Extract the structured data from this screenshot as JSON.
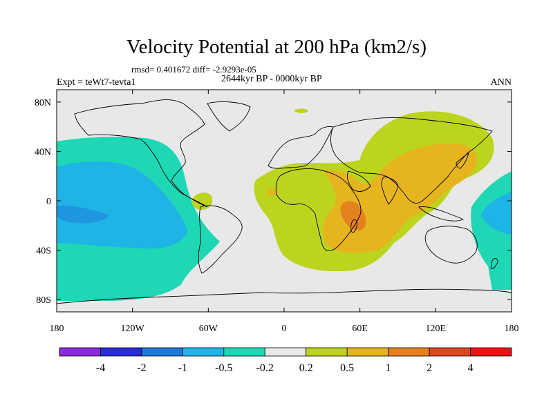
{
  "figure": {
    "title": "Velocity Potential at 200 hPa (km2/s)",
    "stats_text": "rmsd= 0.401672 diff= -2.9293e-05",
    "period": "2644kyr BP - 0000kyr BP",
    "experiment": "Expt = teWt7-tevta1",
    "season": "ANN"
  },
  "map_axes": {
    "lat_range": [
      -90,
      90
    ],
    "lon_range": [
      -180,
      180
    ],
    "lat_ticks": [
      {
        "value": 80,
        "label": "80N"
      },
      {
        "value": 40,
        "label": "40N"
      },
      {
        "value": 0,
        "label": "0"
      },
      {
        "value": -40,
        "label": "40S"
      },
      {
        "value": -80,
        "label": "80S"
      }
    ],
    "lon_ticks": [
      {
        "value": -180,
        "label": "180"
      },
      {
        "value": -120,
        "label": "120W"
      },
      {
        "value": -60,
        "label": "60W"
      },
      {
        "value": 0,
        "label": "0"
      },
      {
        "value": 60,
        "label": "60E"
      },
      {
        "value": 120,
        "label": "120E"
      },
      {
        "value": 180,
        "label": "180"
      }
    ]
  },
  "colorbar": {
    "colors": [
      "#8a2be2",
      "#2b2bd8",
      "#1e78d8",
      "#1eb4e6",
      "#1ed7b4",
      "#e8e8e8",
      "#bdd41e",
      "#e6b41e",
      "#e6821e",
      "#e0461e",
      "#e61414"
    ],
    "labels": [
      "-4",
      "-2",
      "-1",
      "-0.5",
      "-0.2",
      "0.2",
      "0.5",
      "1",
      "2",
      "4"
    ]
  },
  "chart_data": {
    "type": "contour-map",
    "variable": "Velocity Potential at 200 hPa",
    "units": "km2/s",
    "levels": [
      -4,
      -2,
      -1,
      -0.5,
      -0.2,
      0.2,
      0.5,
      1,
      2,
      4
    ],
    "features": [
      {
        "name": "pacific-negative-region",
        "center_lon": -150,
        "center_lat": -5,
        "min_value_range": [
          -1,
          -0.5
        ]
      },
      {
        "name": "west-pacific-negative-region",
        "center_lon": 178,
        "center_lat": 0,
        "min_value_range": [
          -1,
          -0.5
        ]
      },
      {
        "name": "africa-asia-positive-region",
        "center_lon": 50,
        "center_lat": -10,
        "max_value_range": [
          1,
          2
        ]
      }
    ]
  }
}
